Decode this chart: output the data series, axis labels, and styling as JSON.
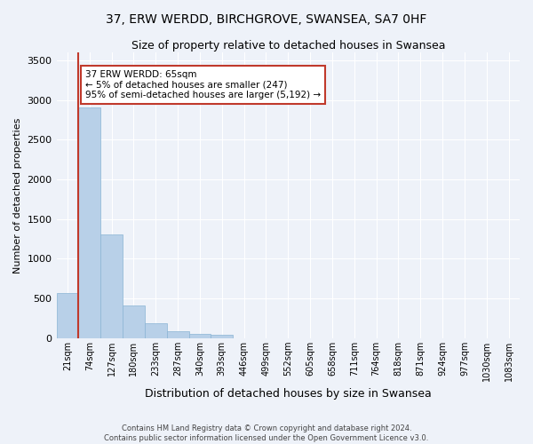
{
  "title": "37, ERW WERDD, BIRCHGROVE, SWANSEA, SA7 0HF",
  "subtitle": "Size of property relative to detached houses in Swansea",
  "xlabel": "Distribution of detached houses by size in Swansea",
  "ylabel": "Number of detached properties",
  "footer_line1": "Contains HM Land Registry data © Crown copyright and database right 2024.",
  "footer_line2": "Contains public sector information licensed under the Open Government Licence v3.0.",
  "categories": [
    "21sqm",
    "74sqm",
    "127sqm",
    "180sqm",
    "233sqm",
    "287sqm",
    "340sqm",
    "393sqm",
    "446sqm",
    "499sqm",
    "552sqm",
    "605sqm",
    "658sqm",
    "711sqm",
    "764sqm",
    "818sqm",
    "871sqm",
    "924sqm",
    "977sqm",
    "1030sqm",
    "1083sqm"
  ],
  "values": [
    570,
    2910,
    1310,
    410,
    185,
    80,
    50,
    40,
    0,
    0,
    0,
    0,
    0,
    0,
    0,
    0,
    0,
    0,
    0,
    0,
    0
  ],
  "bar_color": "#b8d0e8",
  "bar_edge_color": "#8ab4d4",
  "highlight_color": "#c0392b",
  "annotation_text": "37 ERW WERDD: 65sqm\n← 5% of detached houses are smaller (247)\n95% of semi-detached houses are larger (5,192) →",
  "annotation_box_color": "#ffffff",
  "annotation_box_edge": "#c0392b",
  "ylim": [
    0,
    3600
  ],
  "background_color": "#eef2f9",
  "grid_color": "#ffffff",
  "vline_color": "#c0392b",
  "vline_x": 0.5
}
